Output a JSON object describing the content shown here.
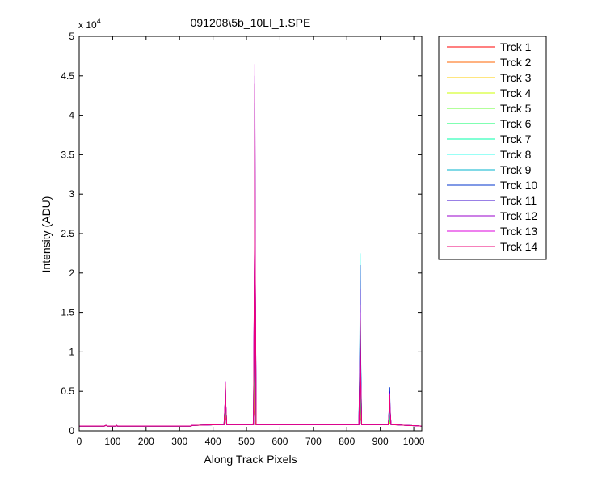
{
  "chart_data": {
    "type": "line",
    "title": "091208\\5b_10LI_1.SPE",
    "xlabel": "Along Track Pixels",
    "ylabel": "Intensity (ADU)",
    "y_multiplier": "x 10",
    "y_multiplier_exp": "4",
    "xlim": [
      0,
      1024
    ],
    "ylim": [
      0,
      5
    ],
    "xticks": [
      0,
      100,
      200,
      300,
      400,
      500,
      600,
      700,
      800,
      900,
      1000
    ],
    "yticks": [
      0,
      0.5,
      1,
      1.5,
      2,
      2.5,
      3,
      3.5,
      4,
      4.5,
      5
    ],
    "ytick_labels": [
      "0",
      "0.5",
      "1",
      "1.5",
      "2",
      "2.5",
      "3",
      "3.5",
      "4",
      "4.5",
      "5"
    ],
    "grid": false,
    "legend": "outside-right",
    "baseline": 0.06,
    "series": [
      {
        "name": "Trck 1",
        "color": "#ff0000",
        "peaks": [
          [
            437,
            0.28
          ],
          [
            524,
            0.45
          ],
          [
            840,
            0.3
          ],
          [
            928,
            0.12
          ]
        ]
      },
      {
        "name": "Trck 2",
        "color": "#ff6600",
        "peaks": [
          [
            437,
            0.3
          ],
          [
            524,
            0.5
          ],
          [
            840,
            0.32
          ],
          [
            928,
            0.13
          ]
        ]
      },
      {
        "name": "Trck 3",
        "color": "#ffcc00",
        "peaks": [
          [
            437,
            0.32
          ],
          [
            525,
            0.8
          ],
          [
            840,
            0.35
          ],
          [
            928,
            0.14
          ]
        ]
      },
      {
        "name": "Trck 4",
        "color": "#ccff00",
        "peaks": [
          [
            437,
            0.35
          ],
          [
            525,
            1.2
          ],
          [
            840,
            0.4
          ],
          [
            928,
            0.15
          ]
        ]
      },
      {
        "name": "Trck 5",
        "color": "#66ff33",
        "peaks": [
          [
            437,
            0.4
          ],
          [
            525,
            1.8
          ],
          [
            840,
            0.5
          ],
          [
            928,
            0.18
          ]
        ]
      },
      {
        "name": "Trck 6",
        "color": "#00ff66",
        "peaks": [
          [
            437,
            0.45
          ],
          [
            525,
            2.5
          ],
          [
            840,
            0.7
          ],
          [
            928,
            0.22
          ]
        ]
      },
      {
        "name": "Trck 7",
        "color": "#00ffaa",
        "peaks": [
          [
            437,
            0.5
          ],
          [
            525,
            3.2
          ],
          [
            840,
            1.0
          ],
          [
            928,
            0.28
          ]
        ]
      },
      {
        "name": "Trck 8",
        "color": "#33ffee",
        "peaks": [
          [
            437,
            0.55
          ],
          [
            525,
            3.8
          ],
          [
            840,
            2.25
          ],
          [
            928,
            0.35
          ]
        ]
      },
      {
        "name": "Trck 9",
        "color": "#00b3cc",
        "peaks": [
          [
            437,
            0.58
          ],
          [
            525,
            4.1
          ],
          [
            840,
            1.9
          ],
          [
            928,
            0.42
          ]
        ]
      },
      {
        "name": "Trck 10",
        "color": "#0033cc",
        "peaks": [
          [
            437,
            0.6
          ],
          [
            525,
            4.15
          ],
          [
            840,
            2.1
          ],
          [
            928,
            0.55
          ]
        ]
      },
      {
        "name": "Trck 11",
        "color": "#3300cc",
        "peaks": [
          [
            437,
            0.6
          ],
          [
            525,
            4.4
          ],
          [
            840,
            1.8
          ],
          [
            928,
            0.5
          ]
        ]
      },
      {
        "name": "Trck 12",
        "color": "#9900cc",
        "peaks": [
          [
            437,
            0.62
          ],
          [
            525,
            4.5
          ],
          [
            840,
            1.6
          ],
          [
            928,
            0.48
          ]
        ]
      },
      {
        "name": "Trck 13",
        "color": "#dd00dd",
        "peaks": [
          [
            437,
            0.63
          ],
          [
            525,
            4.65
          ],
          [
            840,
            1.5
          ],
          [
            928,
            0.46
          ]
        ]
      },
      {
        "name": "Trck 14",
        "color": "#ee0077",
        "peaks": [
          [
            437,
            0.6
          ],
          [
            525,
            4.4
          ],
          [
            840,
            1.4
          ],
          [
            928,
            0.45
          ]
        ]
      }
    ]
  }
}
